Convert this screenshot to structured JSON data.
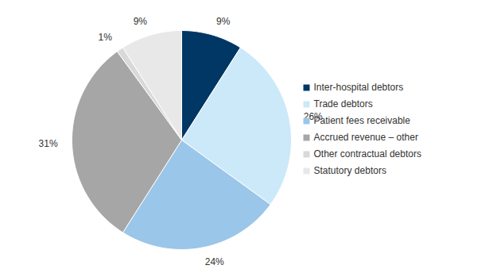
{
  "chart_data": {
    "type": "pie",
    "categories": [
      "Inter-hospital debtors",
      "Trade debtors",
      "Patient fees receivable",
      "Accrued revenue – other",
      "Other contractual debtors",
      "Statutory debtors"
    ],
    "values": [
      9,
      26,
      24,
      31,
      1,
      9
    ],
    "value_labels": [
      "9%",
      "26%",
      "24%",
      "31%",
      "1%",
      "9%"
    ],
    "colors": [
      "#003764",
      "#cce9f9",
      "#9ac6e9",
      "#a6a6a6",
      "#d9d9d9",
      "#e8e8e8"
    ],
    "data_labels": true,
    "legend": "right"
  }
}
